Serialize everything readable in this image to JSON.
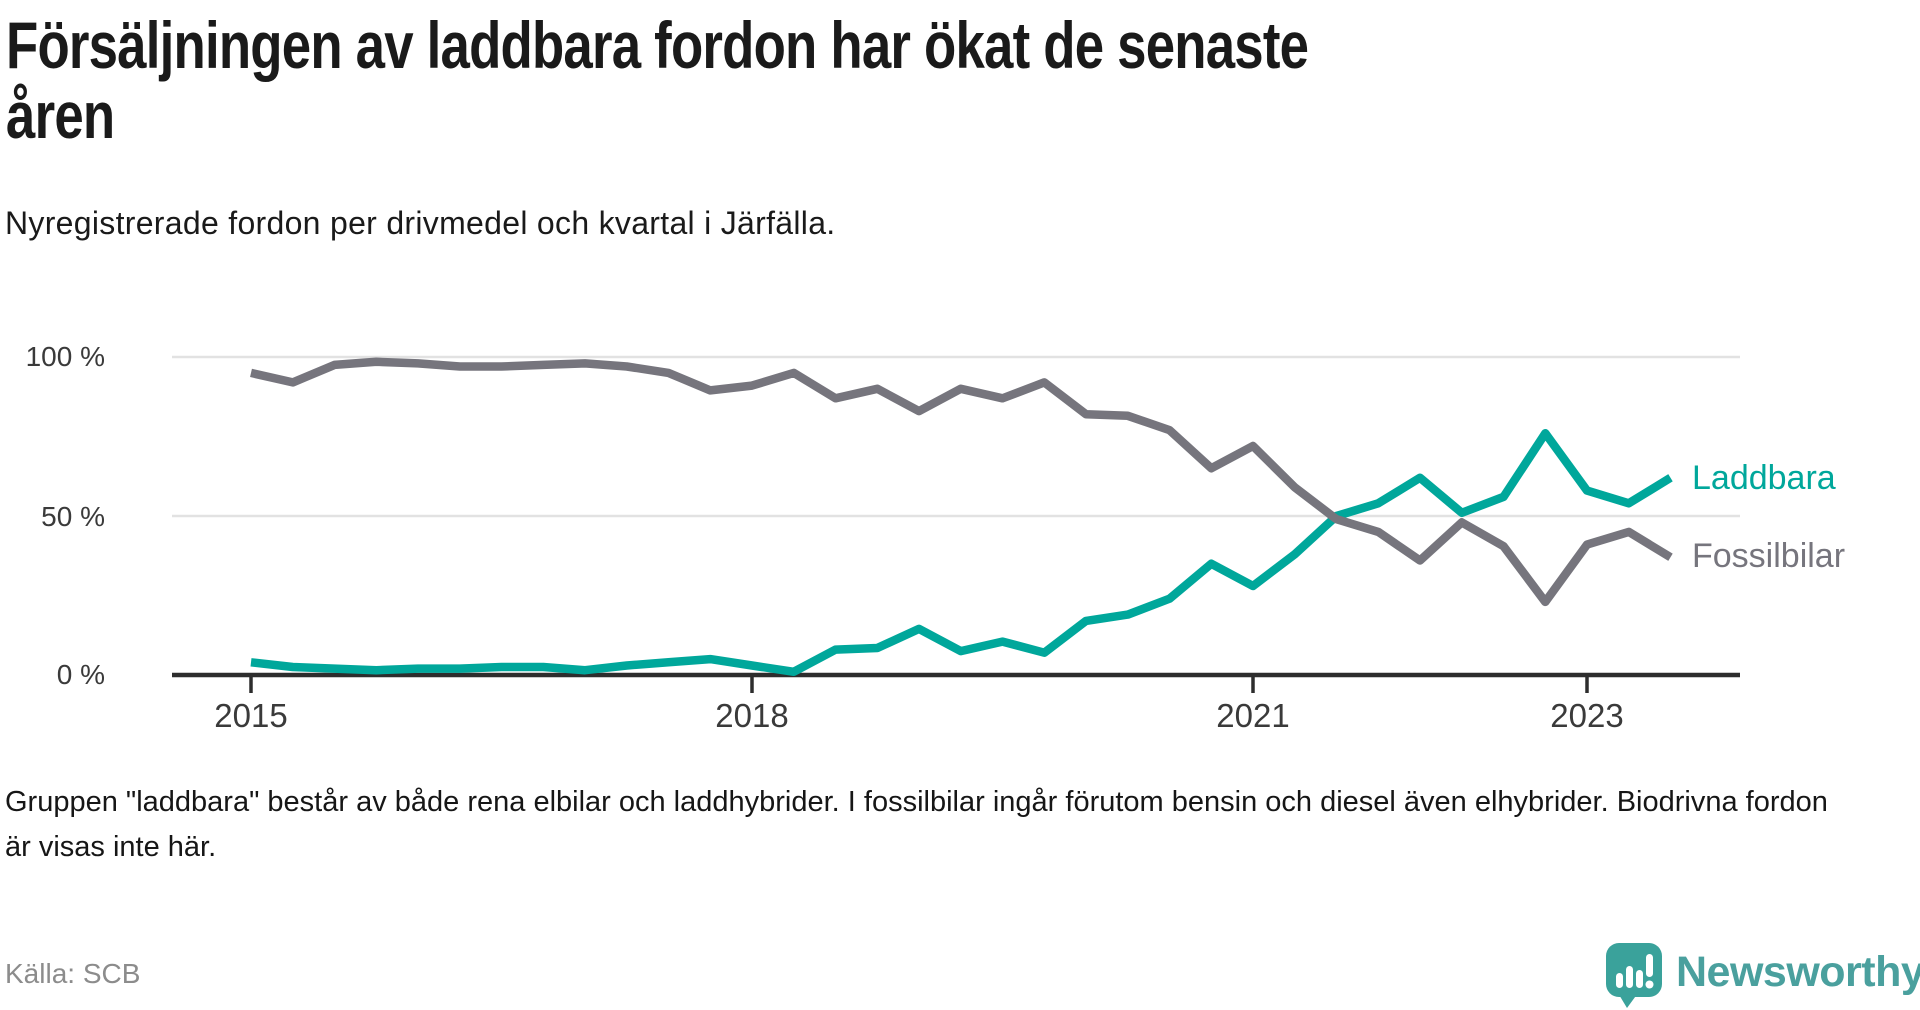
{
  "header": {
    "title_line1": "Försäljningen av laddbara fordon har ökat de senaste",
    "title_line2": "åren",
    "subtitle": "Nyregistrerade fordon per drivmedel och kvartal i Järfälla."
  },
  "chart_data": {
    "type": "line",
    "unit": "percent",
    "title": "Nyregistrerade fordon per drivmedel och kvartal i Järfälla",
    "ylim": [
      0,
      100
    ],
    "grid": "horizontal",
    "legend_position": "right-end-of-line",
    "y_tick_labels": [
      "100 %",
      "50 %",
      "0 %"
    ],
    "y_tick_values": [
      100,
      50,
      0
    ],
    "x_tick_labels": [
      "2015",
      "2018",
      "2021",
      "2023"
    ],
    "x_quarters": [
      "2015Q1",
      "2015Q2",
      "2015Q3",
      "2015Q4",
      "2016Q1",
      "2016Q2",
      "2016Q3",
      "2016Q4",
      "2017Q1",
      "2017Q2",
      "2017Q3",
      "2017Q4",
      "2018Q1",
      "2018Q2",
      "2018Q3",
      "2018Q4",
      "2019Q1",
      "2019Q2",
      "2019Q3",
      "2019Q4",
      "2020Q1",
      "2020Q2",
      "2020Q3",
      "2020Q4",
      "2021Q1",
      "2021Q2",
      "2021Q3",
      "2021Q4",
      "2022Q1",
      "2022Q2",
      "2022Q3",
      "2022Q4",
      "2023Q1",
      "2023Q2",
      "2023Q3"
    ],
    "series": [
      {
        "name": "Laddbara",
        "color": "#00a79b",
        "values": [
          4,
          2.5,
          2,
          1.5,
          2,
          2,
          2.5,
          2.5,
          1.5,
          3,
          4,
          5,
          3,
          1,
          8,
          8.5,
          14.5,
          7.5,
          10.5,
          7,
          17,
          19,
          24,
          35,
          28,
          38,
          50,
          54,
          62,
          51,
          56,
          76,
          58,
          54,
          62
        ]
      },
      {
        "name": "Fossilbilar",
        "color": "#76757d",
        "values": [
          95,
          92,
          97.5,
          98.5,
          98,
          97,
          97,
          97.5,
          98,
          97,
          95,
          89.5,
          91,
          95,
          87,
          90,
          83,
          90,
          87,
          92,
          82,
          81.5,
          77,
          65,
          72,
          59,
          49,
          45,
          36,
          48,
          40.5,
          23,
          41,
          45,
          37
        ]
      }
    ]
  },
  "footnote": "Gruppen \"laddbara\" består av både rena elbilar och laddhybrider. I fossilbilar ingår förutom bensin och diesel även elhybrider. Biodrivna fordon är visas inte här.",
  "source": "Källa: SCB",
  "logo": {
    "name": "Newsworthy"
  },
  "colors": {
    "laddbara": "#00a79b",
    "fossilbilar": "#76757d",
    "axis": "#2d2d2d",
    "gridline": "#e2e2e2",
    "logo_teal": "#4aa09e",
    "logo_mark": "#3aa29b"
  }
}
